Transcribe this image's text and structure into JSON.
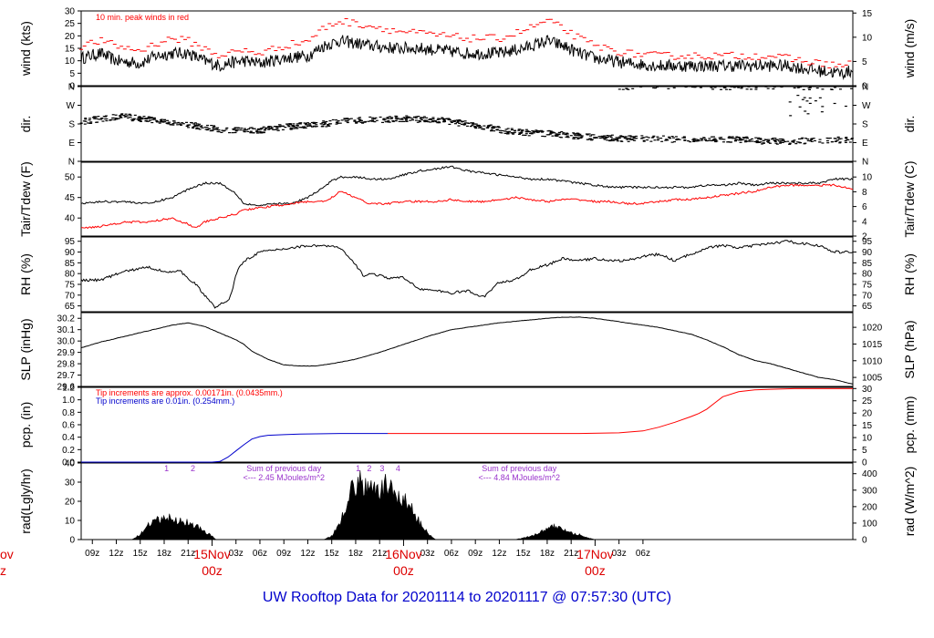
{
  "colors": {
    "primary": "#000000",
    "peak": "#ff0000",
    "precip_blue": "#0000cc",
    "annotation": "#9933cc",
    "day_label": "#dd0000",
    "footer": "#0000cc"
  },
  "footer": {
    "title": "UW Rooftop Data for 20201114  to  20201117 @ 07:57:30  (UTC)"
  },
  "chart_data": [
    {
      "type": "line",
      "panel": "wind",
      "ylabel": "wind (kts)",
      "ylabel_right": "wind (m/s)",
      "ylim": [
        0,
        30
      ],
      "yticks": [
        "0",
        "5",
        "10",
        "15",
        "20",
        "25",
        "30"
      ],
      "right_ylim": [
        0,
        15.43
      ],
      "right_yticks": [
        "0",
        "5",
        "10",
        "15"
      ],
      "annotation": "10 min. peak winds in red",
      "series": [
        {
          "color": "#000000",
          "x": [
            7.6,
            10,
            12,
            15,
            17,
            19,
            21,
            23,
            25,
            26,
            28,
            30,
            33,
            36,
            38,
            40,
            44,
            47,
            50,
            53,
            56,
            60,
            63,
            66,
            68,
            70,
            72,
            76,
            80,
            84,
            88,
            91,
            94,
            96,
            98,
            100,
            103,
            104.3
          ],
          "y": [
            11,
            13,
            10,
            9,
            12,
            13,
            13,
            10,
            8,
            9,
            10,
            9,
            11,
            12,
            16,
            18,
            16,
            15,
            15,
            14,
            13,
            13,
            15,
            18,
            16,
            13,
            11,
            9,
            8,
            8,
            8,
            8,
            8,
            8,
            7,
            6,
            5,
            6
          ]
        },
        {
          "color": "#ff0000",
          "x": [
            7.6,
            10,
            12,
            15,
            17,
            19,
            21,
            23,
            25,
            26,
            28,
            30,
            33,
            36,
            38,
            40,
            44,
            47,
            50,
            53,
            56,
            60,
            63,
            66,
            68,
            70,
            72,
            76,
            80,
            84,
            88,
            91,
            94,
            96,
            98,
            100,
            103,
            104.3
          ],
          "y": [
            16,
            18,
            16,
            14,
            17,
            19,
            18,
            15,
            12,
            13,
            14,
            13,
            16,
            18,
            23,
            26,
            24,
            22,
            21,
            20,
            19,
            19,
            22,
            26,
            23,
            19,
            16,
            13,
            12,
            12,
            12,
            12,
            12,
            11,
            10,
            9,
            8,
            9
          ]
        }
      ]
    },
    {
      "type": "scatter",
      "panel": "direction",
      "ylabel": "dir.",
      "ylabel_right": "dir.",
      "ylim": [
        0,
        360
      ],
      "yticks": [
        "N",
        "E",
        "S",
        "W",
        "N"
      ],
      "series": [
        {
          "color": "#000000",
          "x": [
            7.6,
            10,
            13,
            16,
            19,
            22,
            24,
            26,
            28,
            30,
            32,
            34,
            36,
            38,
            40,
            44,
            48,
            52,
            54,
            56,
            58,
            60,
            62,
            64,
            66,
            68,
            70,
            72,
            75,
            78,
            80,
            82,
            84,
            86,
            88,
            90,
            92,
            94,
            96,
            98,
            100,
            102,
            104.3
          ],
          "y": [
            190,
            205,
            215,
            200,
            185,
            170,
            158,
            150,
            148,
            150,
            160,
            168,
            175,
            180,
            190,
            200,
            205,
            200,
            190,
            180,
            168,
            152,
            142,
            138,
            133,
            128,
            122,
            115,
            110,
            110,
            108,
            106,
            103,
            105,
            104,
            106,
            100,
            97,
            95,
            98,
            100,
            102,
            105
          ]
        }
      ]
    },
    {
      "type": "line",
      "panel": "temperature",
      "ylabel": "Tair/Tdew (F)",
      "ylabel_right": "Tair/Tdew (C)",
      "ylim": [
        35.6,
        53.6
      ],
      "yticks": [
        "40",
        "45",
        "50"
      ],
      "right_ylim": [
        2,
        12
      ],
      "right_yticks": [
        "2",
        "4",
        "6",
        "8",
        "10"
      ],
      "series": [
        {
          "name": "Tair",
          "color": "#000000",
          "x": [
            7.6,
            10,
            13,
            16,
            19,
            21,
            23,
            25,
            27,
            28,
            30,
            32,
            34,
            36,
            38,
            39,
            40,
            42,
            44,
            46,
            48,
            50,
            52,
            54,
            56,
            58,
            60,
            62,
            64,
            66,
            68,
            70,
            72,
            74,
            76,
            78,
            80,
            82,
            84,
            86,
            88,
            90,
            92,
            94,
            96,
            98,
            100,
            102,
            104.3
          ],
          "y": [
            43.5,
            44,
            44,
            43.5,
            45,
            47,
            48.5,
            48.5,
            46,
            43.5,
            43,
            43.5,
            43.5,
            45,
            47.5,
            49,
            50,
            50,
            49.5,
            49.5,
            50.5,
            51.5,
            52,
            52.5,
            51.5,
            51,
            50.5,
            50,
            49.5,
            49.5,
            49,
            48.5,
            48,
            47.5,
            47.5,
            47.5,
            47.5,
            47.5,
            47.5,
            48,
            48,
            48.5,
            48,
            48.5,
            48.5,
            48.5,
            48.5,
            49.5,
            49.5
          ]
        },
        {
          "name": "Tdew",
          "color": "#ff0000",
          "x": [
            7.6,
            10,
            13,
            16,
            19,
            21,
            22,
            23,
            25,
            27,
            28,
            30,
            32,
            34,
            36,
            38,
            39,
            40,
            42,
            43,
            44,
            46,
            48,
            50,
            52,
            54,
            56,
            58,
            60,
            62,
            64,
            66,
            68,
            70,
            72,
            74,
            76,
            78,
            80,
            82,
            84,
            86,
            88,
            90,
            92,
            94,
            96,
            98,
            100,
            102,
            104.3
          ],
          "y": [
            37.5,
            38,
            39,
            39,
            40,
            38.5,
            37.5,
            39,
            40,
            41,
            42,
            42.5,
            43,
            43.5,
            44,
            44,
            45,
            46.5,
            45,
            44,
            43.5,
            43.5,
            44,
            44,
            44,
            44.5,
            44,
            44,
            44.5,
            45,
            44.5,
            44,
            44.5,
            44.5,
            44,
            44,
            43.5,
            43.5,
            44,
            44.5,
            44.5,
            45,
            45.5,
            46,
            46.5,
            47.5,
            48,
            48,
            48,
            48,
            47
          ]
        }
      ]
    },
    {
      "type": "line",
      "panel": "humidity",
      "ylabel": "RH (%)",
      "ylabel_right": "RH (%)",
      "ylim": [
        62.3,
        97
      ],
      "yticks": [
        "65",
        "70",
        "75",
        "80",
        "85",
        "90",
        "95"
      ],
      "right_yticks": [
        "65",
        "70",
        "75",
        "80",
        "85",
        "90",
        "95"
      ],
      "series": [
        {
          "color": "#000000",
          "x": [
            7.6,
            10,
            13,
            16,
            18,
            20,
            22,
            23,
            24,
            24.5,
            25,
            26,
            26.5,
            27,
            28,
            30,
            32,
            34,
            36,
            38,
            40,
            41,
            42,
            43,
            44,
            46,
            48,
            50,
            52,
            54,
            56,
            58,
            60,
            62,
            64,
            66,
            68,
            70,
            72,
            74,
            76,
            78,
            80,
            82,
            84,
            86,
            88,
            90,
            92,
            94,
            96,
            98,
            100,
            102,
            104.3
          ],
          "y": [
            77,
            77,
            81,
            83,
            81,
            81,
            75,
            70,
            66,
            64,
            66,
            67,
            72,
            80,
            86,
            90,
            91,
            92,
            93,
            93,
            92,
            88,
            84,
            79,
            80,
            78,
            78,
            73,
            72,
            71,
            72,
            69,
            76,
            77,
            82,
            84,
            87,
            86,
            87,
            86,
            86,
            88,
            89,
            86,
            89,
            92,
            93,
            92,
            93,
            94,
            95,
            94,
            93,
            90,
            90
          ]
        }
      ]
    },
    {
      "type": "line",
      "panel": "pressure",
      "ylabel": "SLP (inHg)",
      "ylabel_right": "SLP (hPa)",
      "ylim": [
        29.6,
        30.25
      ],
      "yticks": [
        "29.6",
        "29.7",
        "29.8",
        "29.9",
        "30.0",
        "30.1",
        "30.2"
      ],
      "right_ylim": [
        1002.3,
        1024.4
      ],
      "right_yticks": [
        "1005",
        "1010",
        "1015",
        "1020"
      ],
      "series": [
        {
          "color": "#000000",
          "x": [
            7.6,
            10,
            13,
            16,
            19,
            21,
            23,
            25,
            27,
            28,
            29,
            31,
            33,
            35,
            37,
            39,
            42,
            45,
            48,
            51,
            54,
            57,
            60,
            63,
            66,
            68,
            70,
            72,
            74,
            76,
            78,
            80,
            82,
            84,
            86,
            88,
            90,
            92,
            94,
            96,
            98,
            100,
            102,
            104.3
          ],
          "y": [
            29.94,
            29.99,
            30.04,
            30.09,
            30.14,
            30.16,
            30.13,
            30.07,
            30.01,
            29.97,
            29.91,
            29.84,
            29.79,
            29.78,
            29.78,
            29.8,
            29.84,
            29.9,
            29.97,
            30.04,
            30.1,
            30.13,
            30.16,
            30.18,
            30.2,
            30.21,
            30.21,
            30.2,
            30.18,
            30.16,
            30.14,
            30.12,
            30.09,
            30.06,
            30.01,
            29.95,
            29.88,
            29.83,
            29.8,
            29.76,
            29.72,
            29.68,
            29.66,
            29.62
          ]
        }
      ]
    },
    {
      "type": "line",
      "panel": "precipitation",
      "ylabel": "pcp. (in)",
      "ylabel_right": "pcp. (mm)",
      "ylim": [
        0,
        1.2
      ],
      "yticks": [
        "0.0",
        "0.2",
        "0.4",
        "0.6",
        "0.8",
        "1.0",
        "1.2"
      ],
      "right_ylim": [
        0,
        30.48
      ],
      "right_yticks": [
        "0",
        "5",
        "10",
        "15",
        "20",
        "25",
        "30"
      ],
      "annotations": [
        {
          "text": "Tip increments are approx. 0.00171in. (0.0435mm.)",
          "color": "#ff0000"
        },
        {
          "text": "Tip increments are 0.01in. (0.254mm.)",
          "color": "#0000cc"
        }
      ],
      "series": [
        {
          "color": "#0000cc",
          "x": [
            7.6,
            10,
            14,
            18,
            22,
            24,
            25,
            26,
            27,
            28,
            29,
            30,
            31,
            33,
            35,
            40,
            44,
            46
          ],
          "y": [
            0,
            0,
            0,
            0,
            0,
            0,
            0.01,
            0.08,
            0.18,
            0.28,
            0.37,
            0.41,
            0.43,
            0.44,
            0.45,
            0.46,
            0.46,
            0.46
          ]
        },
        {
          "color": "#ff0000",
          "x": [
            46,
            50,
            55,
            60,
            65,
            70,
            75,
            78,
            80,
            82,
            84,
            85,
            86,
            87,
            88,
            90,
            92,
            94,
            97,
            100,
            104.3
          ],
          "y": [
            0.46,
            0.46,
            0.46,
            0.46,
            0.46,
            0.46,
            0.47,
            0.5,
            0.56,
            0.64,
            0.73,
            0.78,
            0.85,
            0.95,
            1.05,
            1.13,
            1.16,
            1.17,
            1.18,
            1.18,
            1.18
          ]
        }
      ]
    },
    {
      "type": "area",
      "panel": "radiation",
      "ylabel": "rad(Lgly/hr)",
      "ylabel_right": "rad (W/m^2)",
      "ylim": [
        0,
        40
      ],
      "yticks": [
        "0",
        "10",
        "20",
        "30",
        "40"
      ],
      "right_ylim": [
        0,
        464.8
      ],
      "right_yticks": [
        "0",
        "100",
        "200",
        "300",
        "400"
      ],
      "annotations": [
        {
          "text": "Sum of previous day",
          "color": "#9933cc",
          "day": 1
        },
        {
          "text": "<--- 2.45 MJoules/m^2",
          "color": "#9933cc",
          "day": 1
        },
        {
          "text": "Sum of previous day",
          "color": "#9933cc",
          "day": 2
        },
        {
          "text": "<--- 4.84 MJoules/m^2",
          "color": "#9933cc",
          "day": 2
        },
        {
          "text": "1",
          "color": "#9933cc",
          "at": 18.3
        },
        {
          "text": "2",
          "color": "#9933cc",
          "at": 21.6
        },
        {
          "text": "1",
          "color": "#9933cc",
          "at": 42.3
        },
        {
          "text": "2",
          "color": "#9933cc",
          "at": 43.7
        },
        {
          "text": "3",
          "color": "#9933cc",
          "at": 45.3
        },
        {
          "text": "4",
          "color": "#9933cc",
          "at": 47.3
        }
      ],
      "series": [
        {
          "color": "#000000",
          "x": [
            7.6,
            14,
            15,
            16,
            17,
            18,
            19,
            20,
            21,
            22,
            23,
            24,
            24.5,
            38,
            39,
            40,
            41,
            42,
            43,
            44,
            45,
            46,
            47,
            48,
            49,
            50,
            51,
            52,
            62,
            63,
            64,
            65,
            66,
            67,
            68,
            69,
            70,
            71,
            72,
            104.3
          ],
          "y": [
            0,
            0,
            3,
            8,
            11,
            13,
            12,
            11,
            10,
            8,
            5,
            2,
            0,
            0,
            2,
            10,
            25,
            32,
            34,
            28,
            30,
            32,
            27,
            24,
            18,
            10,
            4,
            0,
            0,
            1,
            2,
            4,
            6,
            8,
            6,
            4,
            3,
            1,
            0,
            0
          ]
        }
      ]
    }
  ],
  "x_axis": {
    "range": [
      7.6,
      104.3
    ],
    "ticks": [
      "09z",
      "12z",
      "15z",
      "18z",
      "21z",
      "03z",
      "06z",
      "09z",
      "12z",
      "15z",
      "18z",
      "21z",
      "03z",
      "06z",
      "09z",
      "12z",
      "15z",
      "18z",
      "21z",
      "03z",
      "06z"
    ],
    "tick_hours": [
      9,
      12,
      15,
      18,
      21,
      27,
      30,
      33,
      36,
      39,
      42,
      45,
      51,
      54,
      57,
      60,
      63,
      66,
      69,
      75,
      78
    ],
    "day_labels": [
      {
        "date": "15Nov",
        "time": "00z",
        "hour": 24
      },
      {
        "date": "16Nov",
        "time": "00z",
        "hour": 48
      },
      {
        "date": "17Nov",
        "time": "00z",
        "hour": 72
      }
    ],
    "edge_label": {
      "date": "ov",
      "time": "z"
    }
  }
}
